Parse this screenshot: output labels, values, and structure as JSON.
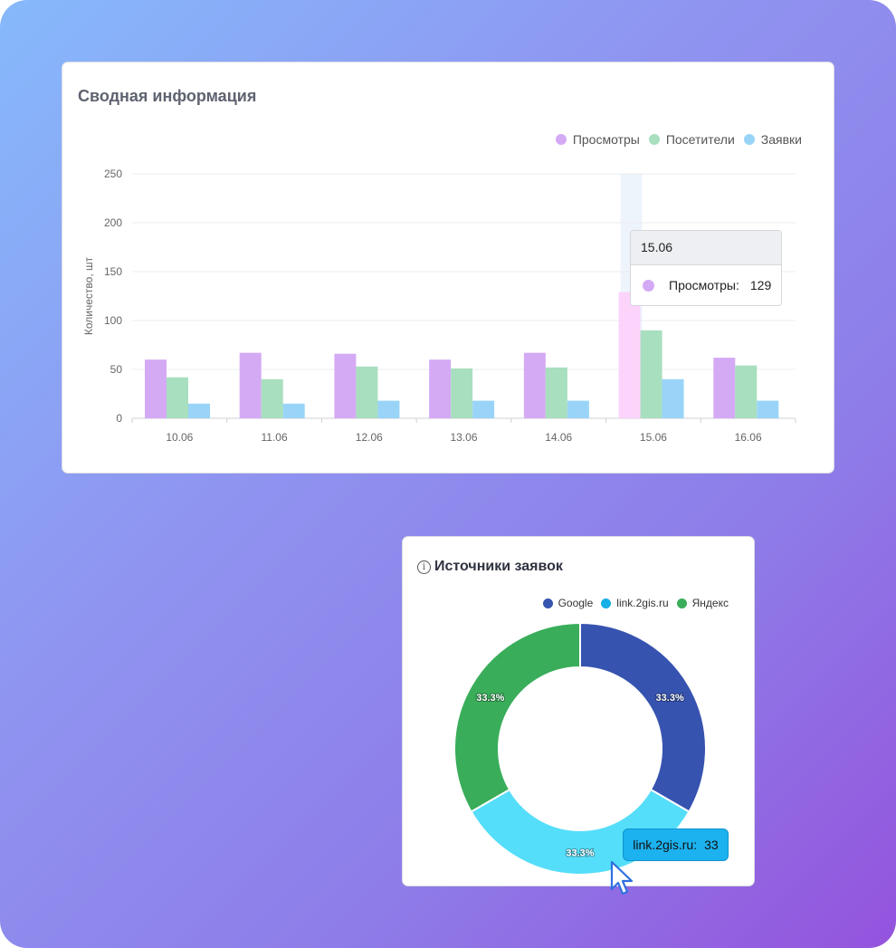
{
  "summary": {
    "title": "Сводная информация",
    "legend": [
      {
        "label": "Просмотры",
        "color": "#d4aaf5"
      },
      {
        "label": "Посетители",
        "color": "#a8dfbf"
      },
      {
        "label": "Заявки",
        "color": "#99d4f8"
      }
    ],
    "tooltip": {
      "date": "15.06",
      "label": "Просмотры:",
      "value": "129",
      "dot_color": "#d4aaf5"
    }
  },
  "sources": {
    "title": "Источники заявок",
    "info_icon": "info-icon",
    "legend": [
      {
        "label": "Google",
        "color": "#3753b0"
      },
      {
        "label": "link.2gis.ru",
        "color": "#18aee6"
      },
      {
        "label": "Яндекс",
        "color": "#39ad5a"
      }
    ],
    "tooltip": {
      "label": "link.2gis.ru:",
      "value": "33"
    }
  },
  "chart_data": [
    {
      "type": "bar",
      "title": "Сводная информация",
      "ylabel": "Количество, шт",
      "xlabel": "",
      "ylim": [
        0,
        250
      ],
      "yticks": [
        0,
        50,
        100,
        150,
        200,
        250
      ],
      "categories": [
        "10.06",
        "11.06",
        "12.06",
        "13.06",
        "14.06",
        "15.06",
        "16.06"
      ],
      "series": [
        {
          "name": "Просмотры",
          "color": "#d4aaf5",
          "highlight_color": "#fbd3fb",
          "values": [
            60,
            67,
            66,
            60,
            67,
            129,
            62
          ]
        },
        {
          "name": "Посетители",
          "color": "#a8dfbf",
          "values": [
            42,
            40,
            53,
            51,
            52,
            90,
            54
          ]
        },
        {
          "name": "Заявки",
          "color": "#99d4f8",
          "values": [
            15,
            15,
            18,
            18,
            18,
            40,
            18
          ]
        }
      ],
      "highlighted_category": "15.06",
      "grid": true,
      "legend_position": "top-right"
    },
    {
      "type": "pie",
      "title": "Источники заявок",
      "donut": true,
      "labels": [
        "Google",
        "link.2gis.ru",
        "Яндекс"
      ],
      "values": [
        33,
        33,
        33
      ],
      "percent_labels": [
        "33.3%",
        "33.3%",
        "33.3%"
      ],
      "colors": [
        "#3753b0",
        "#55def9",
        "#39ad5a"
      ],
      "legend_position": "top-right"
    }
  ]
}
